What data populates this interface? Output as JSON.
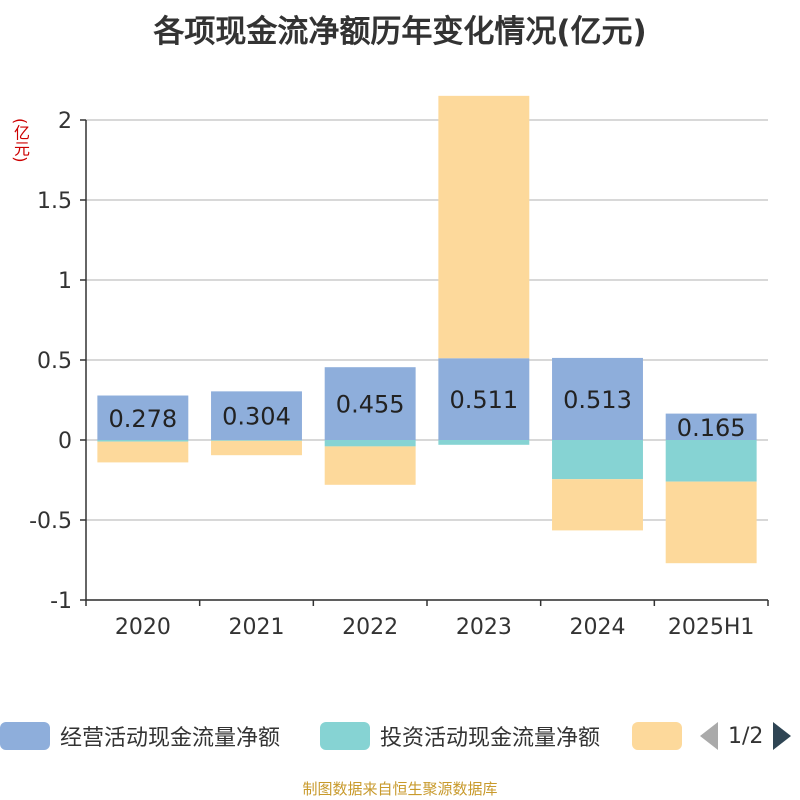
{
  "title": "各项现金流净额历年变化情况(亿元)",
  "source": "制图数据来自恒生聚源数据库",
  "legend": {
    "items": [
      {
        "label": "经营活动现金流量净额",
        "color": "#8eaedb"
      },
      {
        "label": "投资活动现金流量净额",
        "color": "#86d3d3"
      },
      {
        "label": "",
        "color": "#fdd99b"
      }
    ],
    "page": "1/2"
  },
  "chart_data": {
    "type": "bar",
    "stacked": true,
    "unit_label": "(亿元)",
    "categories": [
      "2020",
      "2021",
      "2022",
      "2023",
      "2024",
      "2025H1"
    ],
    "y_ticks": [
      "2",
      "1.5",
      "1",
      "0.5",
      "0",
      "-0.5",
      "-1"
    ],
    "ylim": [
      -1,
      2
    ],
    "grid": true,
    "series": [
      {
        "name": "经营活动现金流量净额",
        "color": "#8eaedb",
        "values": [
          0.278,
          0.304,
          0.455,
          0.511,
          0.513,
          0.165
        ],
        "show_labels": true
      },
      {
        "name": "投资活动现金流量净额",
        "color": "#86d3d3",
        "values": [
          -0.01,
          -0.005,
          -0.04,
          -0.03,
          -0.245,
          -0.26
        ],
        "show_labels": false
      },
      {
        "color": "#fdd99b",
        "values": [
          -0.13,
          -0.09,
          -0.24,
          1.64,
          -0.32,
          -0.51
        ],
        "show_labels": false
      }
    ],
    "data_labels": [
      "0.278",
      "0.304",
      "0.455",
      "0.511",
      "0.513",
      "0.165"
    ]
  }
}
